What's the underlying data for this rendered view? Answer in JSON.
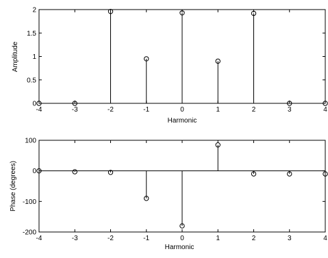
{
  "chart_data": [
    {
      "type": "stem",
      "xlabel": "Harmonic",
      "ylabel": "Amplitude",
      "xlim": [
        -4,
        4
      ],
      "ylim": [
        0,
        2
      ],
      "xticks": [
        "-4",
        "-3",
        "-2",
        "-1",
        "0",
        "1",
        "2",
        "3",
        "4"
      ],
      "yticks": [
        "0",
        "0.5",
        "1",
        "1.5",
        "2"
      ],
      "grid": false,
      "x": [
        -4,
        -3,
        -2,
        -1,
        0,
        1,
        2,
        3,
        4
      ],
      "y": [
        0,
        0,
        1.96,
        0.95,
        1.93,
        0.9,
        1.92,
        0,
        0
      ],
      "baseline": 0,
      "color": "#000000"
    },
    {
      "type": "stem",
      "xlabel": "Harmonic",
      "ylabel": "Phase (degrees)",
      "xlim": [
        -4,
        4
      ],
      "ylim": [
        -200,
        100
      ],
      "xticks": [
        "-4",
        "-3",
        "-2",
        "-1",
        "0",
        "1",
        "2",
        "3",
        "4"
      ],
      "yticks": [
        "-200",
        "-100",
        "0",
        "100"
      ],
      "grid": false,
      "x": [
        -4,
        -3,
        -2,
        -1,
        0,
        1,
        2,
        3,
        4
      ],
      "y": [
        0,
        -3,
        -5,
        -90,
        -180,
        85,
        -10,
        -10,
        -10
      ],
      "baseline": 0,
      "color": "#000000"
    }
  ]
}
